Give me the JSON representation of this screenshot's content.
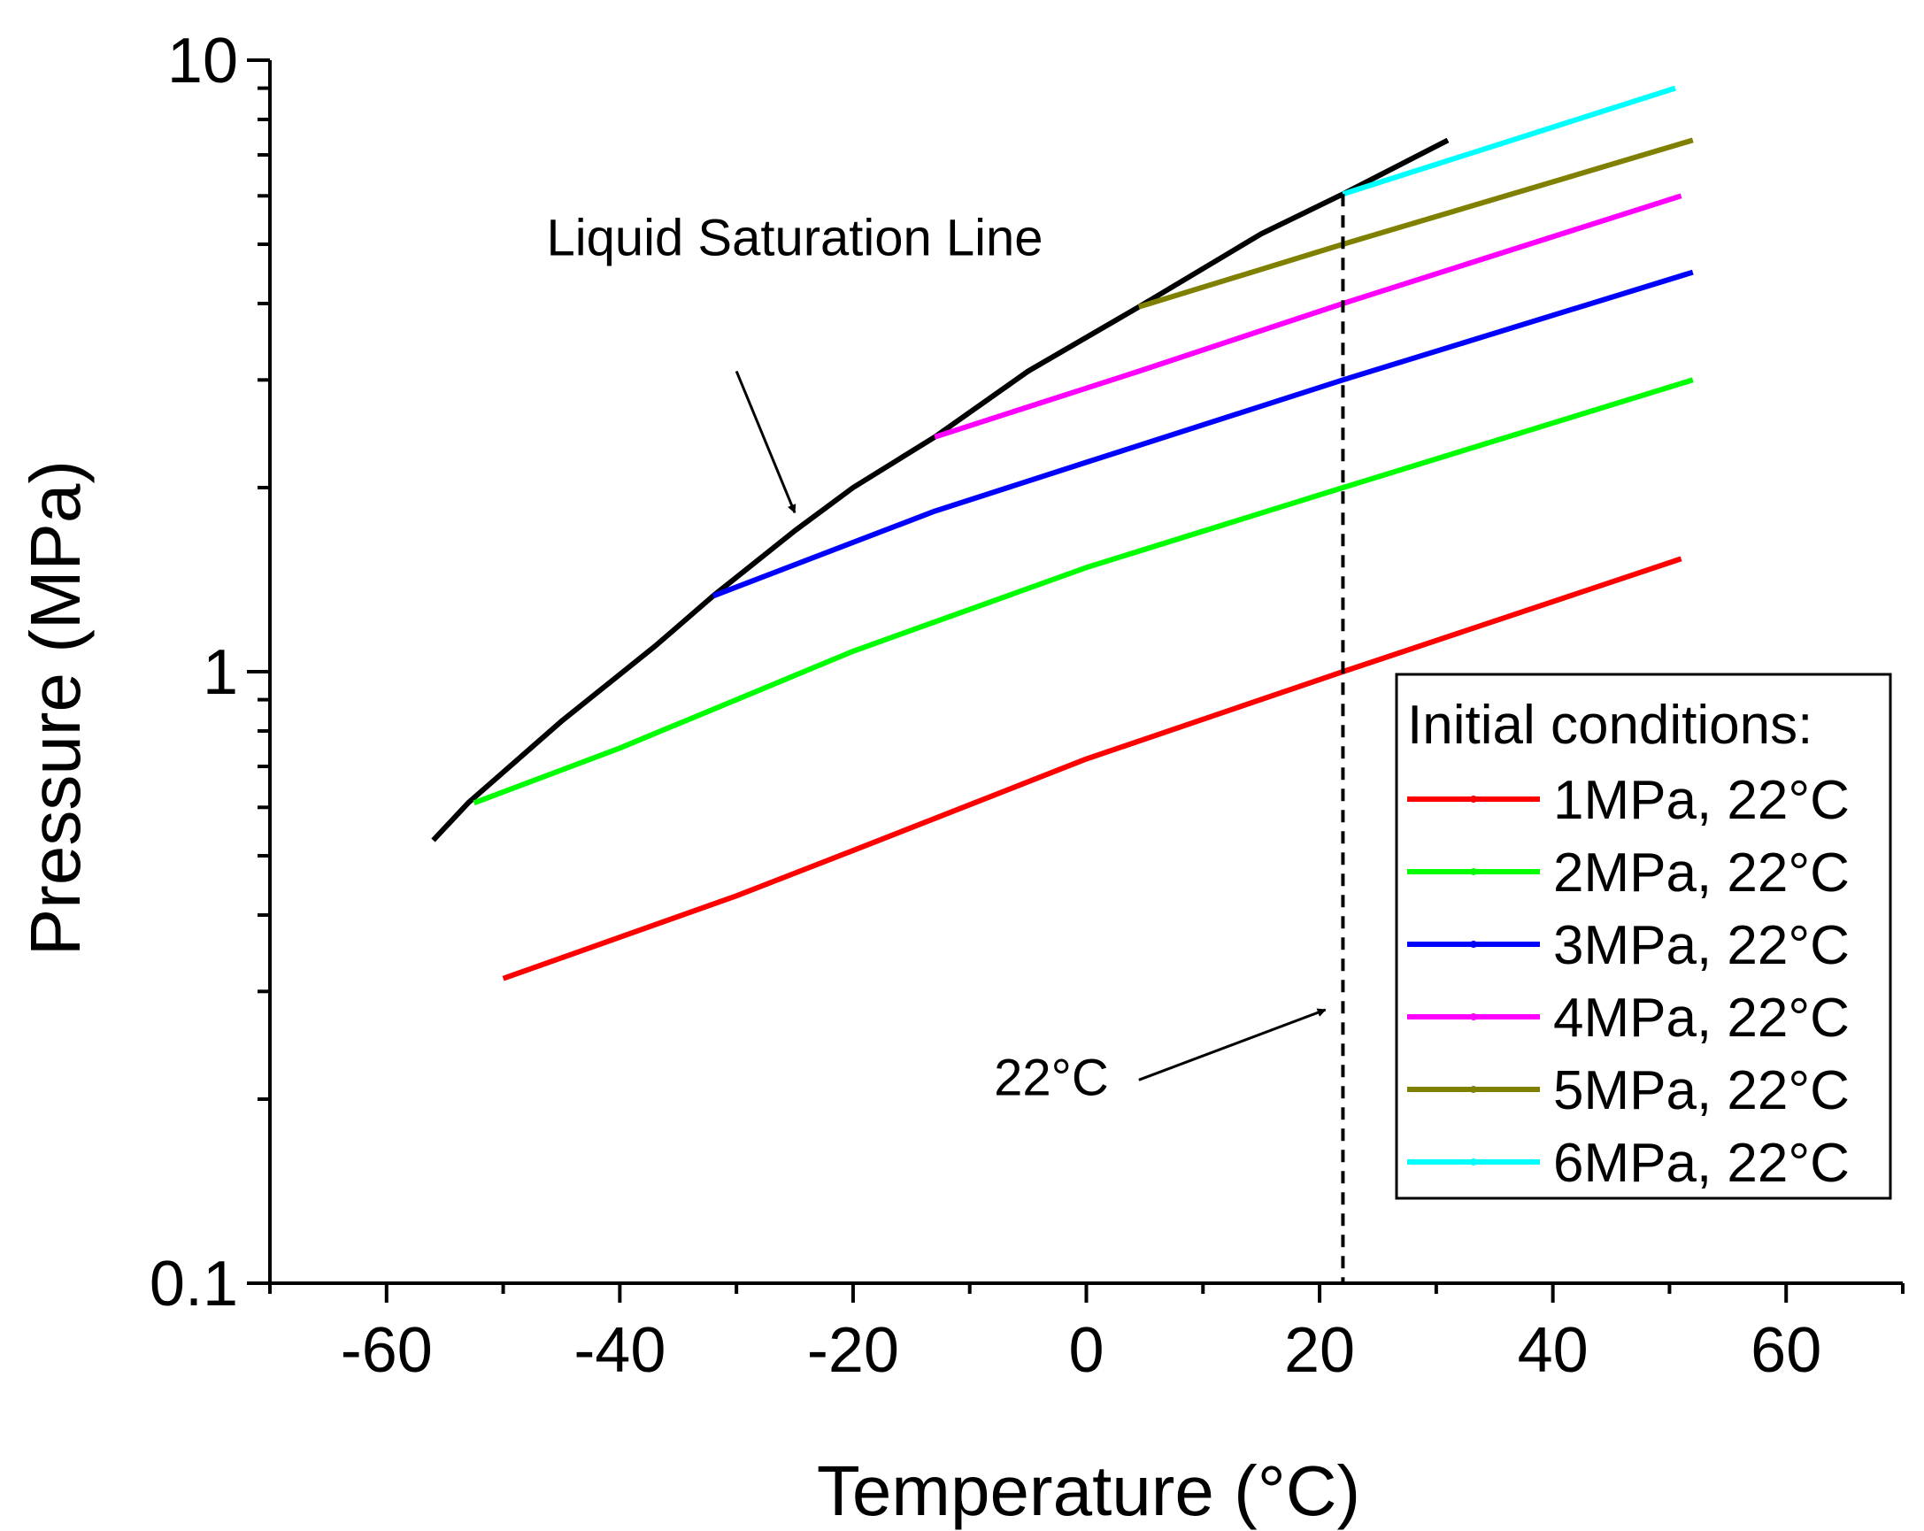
{
  "chart_data": {
    "type": "line",
    "title": "",
    "xlabel": "Temperature (°C)",
    "ylabel": "Pressure (MPa)",
    "xlim": [
      -70,
      70
    ],
    "ylim": [
      0.1,
      10
    ],
    "yscale": "log",
    "xticks": [
      -60,
      -40,
      -20,
      0,
      20,
      40,
      60
    ],
    "xtick_labels": [
      "-60",
      "-40",
      "-20",
      "0",
      "20",
      "40",
      "60"
    ],
    "yticks": [
      0.1,
      1,
      10
    ],
    "ytick_labels": [
      "0.1",
      "1",
      "10"
    ],
    "grid": false,
    "legend": {
      "title": "Initial conditions:",
      "position": "bottom-right"
    },
    "series": [
      {
        "name": "Liquid Saturation Line",
        "color": "#000000",
        "in_legend": false,
        "x": [
          -56,
          -53,
          -45,
          -37,
          -32,
          -25,
          -20,
          -13,
          -5,
          4.5,
          15,
          22,
          31
        ],
        "y": [
          0.53,
          0.61,
          0.83,
          1.1,
          1.33,
          1.7,
          2.0,
          2.42,
          3.1,
          3.95,
          5.2,
          6.04,
          7.4
        ]
      },
      {
        "name": "1MPa, 22°C",
        "color": "#ff0000",
        "in_legend": true,
        "x": [
          -50,
          -30,
          -20,
          0,
          22,
          51
        ],
        "y": [
          0.315,
          0.43,
          0.51,
          0.72,
          1.0,
          1.53
        ]
      },
      {
        "name": "2MPa, 22°C",
        "color": "#00ff00",
        "in_legend": true,
        "x": [
          -52.5,
          -40,
          -20,
          0,
          22,
          52
        ],
        "y": [
          0.61,
          0.75,
          1.08,
          1.48,
          2.0,
          3.0
        ]
      },
      {
        "name": "3MPa, 22°C",
        "color": "#0000ff",
        "in_legend": true,
        "x": [
          -32,
          -13,
          0,
          22,
          52
        ],
        "y": [
          1.33,
          1.83,
          2.2,
          3.0,
          4.5
        ]
      },
      {
        "name": "4MPa, 22°C",
        "color": "#ff00ff",
        "in_legend": true,
        "x": [
          -13,
          4.5,
          22,
          51
        ],
        "y": [
          2.42,
          3.1,
          4.0,
          6.0
        ]
      },
      {
        "name": "5MPa, 22°C",
        "color": "#808000",
        "in_legend": true,
        "x": [
          4.5,
          22,
          52
        ],
        "y": [
          3.95,
          5.0,
          7.4
        ]
      },
      {
        "name": "6MPa, 22°C",
        "color": "#00ffff",
        "in_legend": true,
        "x": [
          22,
          50.5
        ],
        "y": [
          6.04,
          9.0
        ]
      }
    ],
    "vline": {
      "x": 22,
      "style": "dashed",
      "color": "#000000"
    },
    "annotations": [
      {
        "text": "Liquid Saturation Line",
        "x": -25,
        "y": 4.8,
        "arrow_from": [
          -30,
          3.1
        ],
        "arrow_to": [
          -25,
          1.82
        ]
      },
      {
        "text": "22°C",
        "x": -3,
        "y": 0.203,
        "arrow_from": [
          4.5,
          0.215
        ],
        "arrow_to": [
          20.5,
          0.28
        ]
      }
    ]
  }
}
